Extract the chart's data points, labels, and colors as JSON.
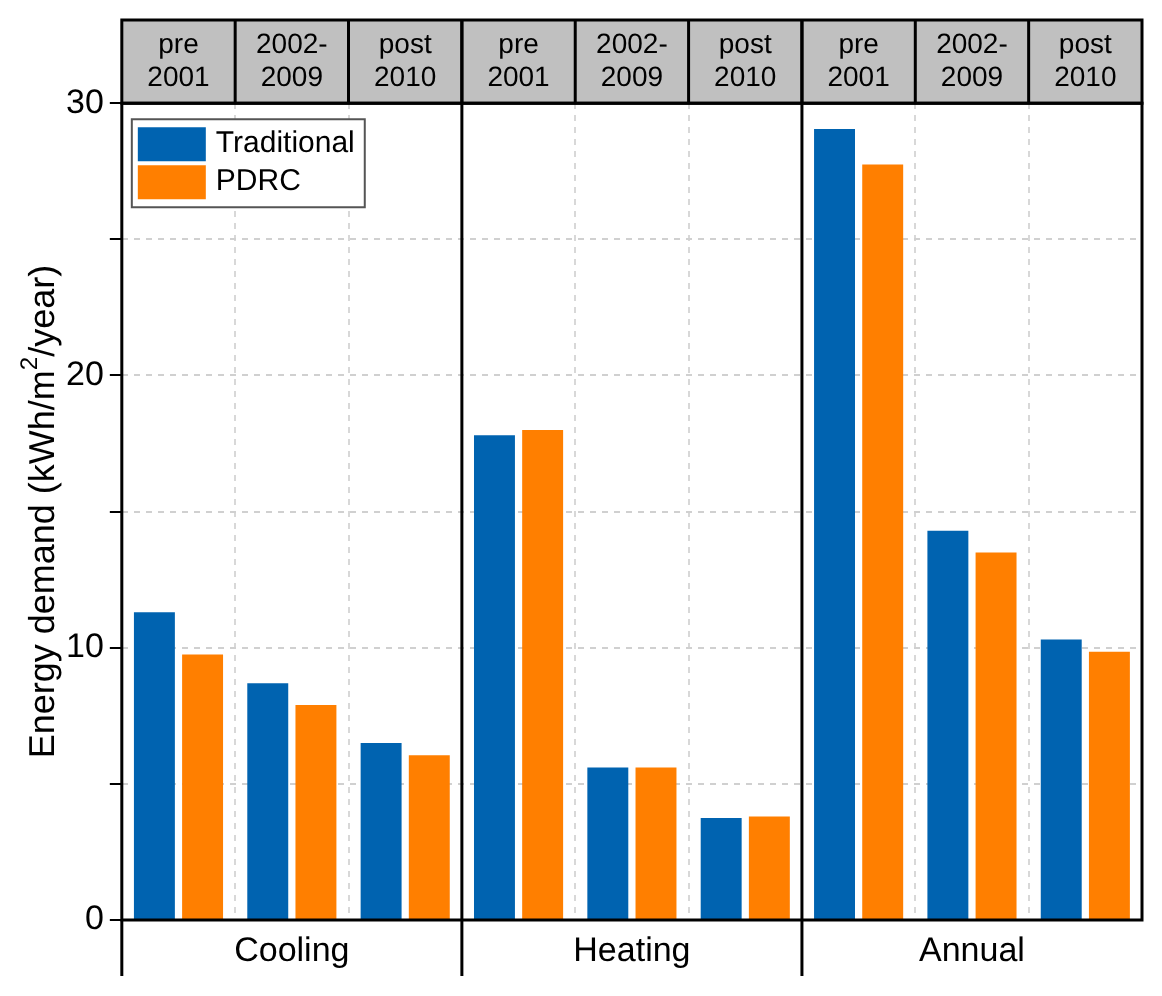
{
  "chart_data": {
    "type": "bar",
    "ylabel": "Energy demand (kWh/m$^{2}$/year)",
    "categories": [
      "pre 2001",
      "2002-2009",
      "post 2010",
      "pre 2001",
      "2002-2009",
      "post 2010",
      "pre 2001",
      "2002-2009",
      "post 2010"
    ],
    "series": [
      {
        "name": "Traditional",
        "color": "#0063b0",
        "values": [
          11.3,
          8.7,
          6.5,
          17.8,
          5.6,
          3.75,
          29.05,
          14.3,
          10.3
        ]
      },
      {
        "name": "PDRC",
        "color": "#ff7f00",
        "values": [
          9.75,
          7.9,
          6.05,
          18.0,
          5.6,
          3.8,
          27.75,
          13.5,
          9.85
        ]
      }
    ],
    "ylim": [
      0,
      30
    ],
    "yticks": [
      0,
      {
        "value": 5,
        "label": null
      },
      10,
      {
        "value": 15,
        "label": null
      },
      20,
      {
        "value": 25,
        "label": null
      },
      30
    ],
    "annotations": [
      "Cooling",
      "Heating",
      "Annual"
    ],
    "grid": true,
    "legend": "top left"
  }
}
